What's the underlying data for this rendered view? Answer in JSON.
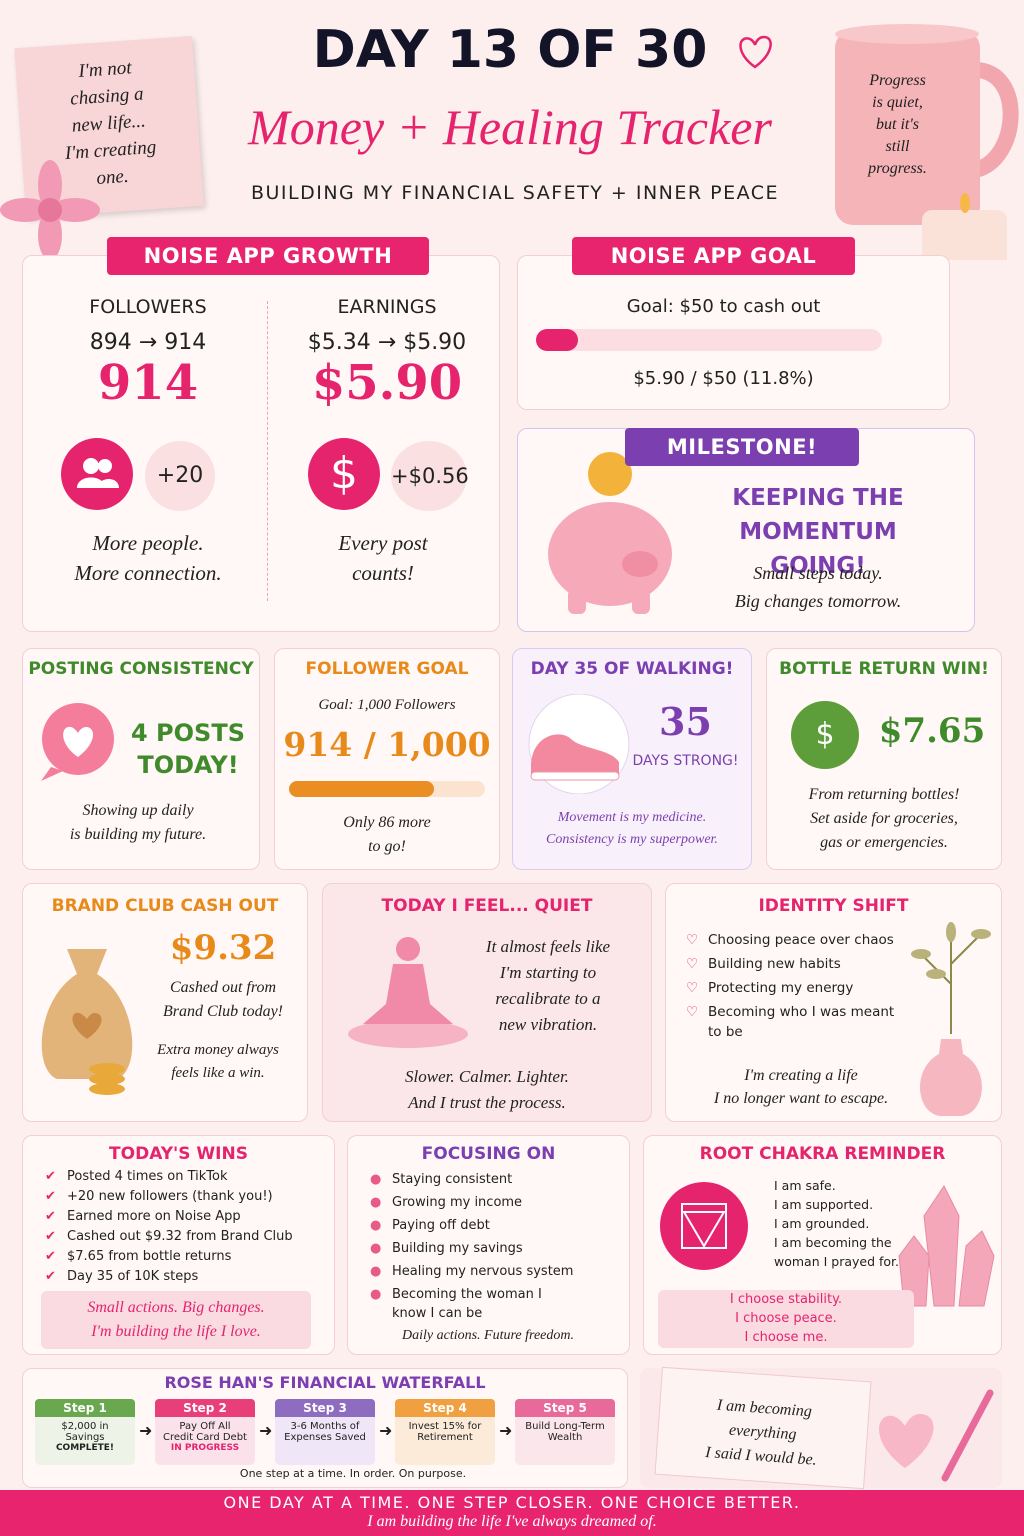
{
  "header": {
    "title": "DAY 13 OF 30",
    "subtitle": "Money + Healing Tracker",
    "tagline": "BUILDING MY FINANCIAL SAFETY + INNER PEACE"
  },
  "note": {
    "lines": [
      "I'm not",
      "chasing a",
      "new life...",
      "I'm creating",
      "one."
    ]
  },
  "mug": {
    "lines": [
      "Progress",
      "is quiet,",
      "but it's",
      "still",
      "progress."
    ]
  },
  "growth": {
    "title": "NOISE APP GROWTH",
    "followers": {
      "label": "FOLLOWERS",
      "change": "894 → 914",
      "value": "914",
      "delta": "+20",
      "caption": [
        "More people.",
        "More connection."
      ]
    },
    "earnings": {
      "label": "EARNINGS",
      "change": "$5.34 → $5.90",
      "value": "$5.90",
      "delta": "+$0.56",
      "caption": [
        "Every post",
        "counts!"
      ]
    }
  },
  "goal": {
    "title": "NOISE APP GOAL",
    "goal": "Goal: $50 to cash out",
    "progress": "$5.90 / $50 (11.8%)"
  },
  "milestone": {
    "badge": "MILESTONE!",
    "headline": [
      "KEEPING THE",
      "MOMENTUM GOING!"
    ],
    "caption": [
      "Small steps today.",
      "Big changes tomorrow."
    ]
  },
  "posting": {
    "title": "POSTING CONSISTENCY",
    "value": [
      "4 POSTS",
      "TODAY!"
    ],
    "caption": [
      "Showing up daily",
      "is building my future."
    ]
  },
  "follower_goal": {
    "title": "FOLLOWER GOAL",
    "goal": "Goal: 1,000 Followers",
    "value": "914 / 1,000",
    "caption": [
      "Only 86 more",
      "to go!"
    ]
  },
  "walking": {
    "title": "DAY 35 OF WALKING!",
    "value": "35",
    "label": "DAYS STRONG!",
    "caption": [
      "Movement is my medicine.",
      "Consistency is my superpower."
    ]
  },
  "bottle": {
    "title": "BOTTLE RETURN WIN!",
    "value": "$7.65",
    "caption": [
      "From returning bottles!",
      "Set aside for groceries,",
      "gas or emergencies."
    ]
  },
  "brand_club": {
    "title": "BRAND CLUB CASH OUT",
    "value": "$9.32",
    "caption": [
      "Cashed out from",
      "Brand Club today!"
    ],
    "note": [
      "Extra money always",
      "feels like a win."
    ]
  },
  "feel": {
    "title": "TODAY I FEEL... QUIET",
    "text": [
      "It almost feels like",
      "I'm starting to",
      "recalibrate to a",
      "new vibration."
    ],
    "caption": [
      "Slower. Calmer. Lighter.",
      "And I trust the process."
    ]
  },
  "identity": {
    "title": "IDENTITY SHIFT",
    "items": [
      "Choosing peace over chaos",
      "Building new habits",
      "Protecting my energy",
      "Becoming who I was meant to be"
    ],
    "caption": [
      "I'm creating a life",
      "I no longer want to escape."
    ]
  },
  "wins": {
    "title": "TODAY'S WINS",
    "items": [
      "Posted 4 times on TikTok",
      "+20 new followers (thank you!)",
      "Earned more on Noise App",
      "Cashed out $9.32 from Brand Club",
      "$7.65 from bottle returns",
      "Day 35 of 10K steps"
    ],
    "caption": [
      "Small actions. Big changes.",
      "I'm building the life I love."
    ]
  },
  "focusing": {
    "title": "FOCUSING ON",
    "items": [
      "Staying consistent",
      "Growing my income",
      "Paying off debt",
      "Building my savings",
      "Healing my nervous system",
      "Becoming the woman I know I can be"
    ],
    "caption": "Daily actions. Future freedom."
  },
  "chakra": {
    "title": "ROOT CHAKRA REMINDER",
    "lines": [
      "I am safe.",
      "I am supported.",
      "I am grounded.",
      "I am becoming the woman I prayed for."
    ],
    "caption": [
      "I choose stability.",
      "I choose peace.",
      "I choose me."
    ]
  },
  "waterfall": {
    "title": "ROSE HAN'S FINANCIAL WATERFALL",
    "steps": [
      {
        "label": "Step 1",
        "text": [
          "$2,000 in",
          "Savings"
        ],
        "status": "COMPLETE!"
      },
      {
        "label": "Step 2",
        "text": [
          "Pay Off All",
          "Credit Card Debt"
        ],
        "status": "IN PROGRESS"
      },
      {
        "label": "Step 3",
        "text": [
          "3-6 Months of",
          "Expenses Saved"
        ]
      },
      {
        "label": "Step 4",
        "text": [
          "Invest 15% for",
          "Retirement"
        ]
      },
      {
        "label": "Step 5",
        "text": [
          "Build Long-Term",
          "Wealth"
        ]
      }
    ],
    "note": "One step at a time. In order. On purpose."
  },
  "journal": {
    "lines": [
      "I am becoming",
      "everything",
      "I said I would be."
    ]
  },
  "footer": {
    "line1": "ONE DAY AT A TIME. ONE STEP CLOSER. ONE CHOICE BETTER.",
    "line2": "I am building the life I've always dreamed of."
  }
}
